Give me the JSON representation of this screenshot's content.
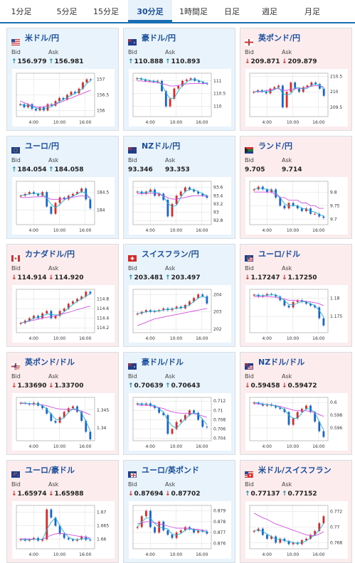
{
  "tabs": [
    {
      "label": "1分足",
      "active": false
    },
    {
      "label": "5分足",
      "active": false
    },
    {
      "label": "15分足",
      "active": false
    },
    {
      "label": "30分足",
      "active": true
    },
    {
      "label": "1時間足",
      "active": false
    },
    {
      "label": "日足",
      "active": false
    },
    {
      "label": "週足",
      "active": false
    },
    {
      "label": "月足",
      "active": false
    }
  ],
  "labels": {
    "bid": "Bid",
    "ask": "Ask"
  },
  "colors": {
    "up_bg": "#e8f3fc",
    "down_bg": "#fcecee",
    "up_candle": "#d42a2a",
    "down_candle": "#1a63c9",
    "ma_short": "#1fb3d6",
    "ma_long": "#d24fe0",
    "name": "#1a4f9c"
  },
  "pairs": [
    {
      "name": "米ドル/円",
      "dir": "up",
      "flag": "us",
      "bid": "156.979",
      "ask": "156.981",
      "bid_dir": "up",
      "ask_dir": "up",
      "chart_data": {
        "type": "candlestick",
        "x_ticks": [
          "4:00",
          "10:00",
          "16:00"
        ],
        "y_ticks": [
          "157",
          "156.5",
          "156"
        ],
        "ylim": [
          155.8,
          157.2
        ],
        "trend": [
          156.2,
          156.1,
          156.2,
          156.05,
          156.0,
          156.1,
          156.0,
          156.2,
          156.15,
          156.3,
          156.4,
          156.35,
          156.5,
          156.6,
          156.55,
          156.7,
          156.9,
          157.0,
          156.98
        ],
        "ma_long": [
          156.3,
          156.25,
          156.2,
          156.15,
          156.12,
          156.1,
          156.12,
          156.15,
          156.18,
          156.2,
          156.25,
          156.3,
          156.35,
          156.4,
          156.45,
          156.5,
          156.55,
          156.6,
          156.65
        ]
      }
    },
    {
      "name": "豪ドル/円",
      "dir": "up",
      "flag": "au",
      "bid": "110.888",
      "ask": "110.893",
      "bid_dir": "up",
      "ask_dir": "up",
      "chart_data": {
        "type": "candlestick",
        "x_ticks": [
          "4:00",
          "10:00",
          "16:00"
        ],
        "y_ticks": [
          "111",
          "110.5",
          "110"
        ],
        "ylim": [
          109.6,
          111.3
        ],
        "trend": [
          111.1,
          111.05,
          111.0,
          111.0,
          110.95,
          111.0,
          110.6,
          110.0,
          110.3,
          110.7,
          110.8,
          111.0,
          111.05,
          111.1,
          111.0,
          110.95,
          110.9,
          110.88
        ],
        "ma_long": [
          111.0,
          111.0,
          110.98,
          110.96,
          110.95,
          110.93,
          110.9,
          110.85,
          110.8,
          110.8,
          110.82,
          110.85,
          110.88,
          110.9,
          110.9,
          110.9,
          110.9,
          110.9
        ]
      }
    },
    {
      "name": "英ポンド/円",
      "dir": "down",
      "flag": "gb",
      "bid": "209.871",
      "ask": "209.879",
      "bid_dir": "down",
      "ask_dir": "down",
      "chart_data": {
        "type": "candlestick",
        "x_ticks": [
          "4:00",
          "10:00",
          "16:00"
        ],
        "y_ticks": [
          "210.5",
          "210",
          "209.5"
        ],
        "ylim": [
          209.2,
          210.6
        ],
        "trend": [
          210.0,
          210.05,
          210.0,
          209.95,
          210.1,
          210.15,
          210.2,
          209.5,
          210.0,
          210.3,
          210.1,
          210.0,
          210.15,
          210.2,
          210.3,
          210.25,
          210.1,
          209.87
        ],
        "ma_long": [
          210.0,
          210.0,
          210.0,
          210.05,
          210.05,
          210.1,
          210.1,
          210.05,
          210.05,
          210.08,
          210.1,
          210.1,
          210.12,
          210.15,
          210.18,
          210.2,
          210.2,
          210.15
        ]
      }
    },
    {
      "name": "ユーロ/円",
      "dir": "up",
      "flag": "eu",
      "bid": "184.054",
      "ask": "184.058",
      "bid_dir": "up",
      "ask_dir": "up",
      "chart_data": {
        "type": "candlestick",
        "x_ticks": [
          "4:00",
          "10:00",
          "16:00"
        ],
        "y_ticks": [
          "184.5",
          "184"
        ],
        "ylim": [
          183.6,
          184.8
        ],
        "trend": [
          184.4,
          184.45,
          184.5,
          184.45,
          184.4,
          184.5,
          184.1,
          183.9,
          184.2,
          184.35,
          184.3,
          184.4,
          184.45,
          184.5,
          184.6,
          184.3,
          184.05
        ],
        "ma_long": [
          184.35,
          184.35,
          184.36,
          184.37,
          184.37,
          184.38,
          184.35,
          184.3,
          184.3,
          184.3,
          184.32,
          184.34,
          184.36,
          184.38,
          184.4,
          184.38,
          184.35
        ]
      }
    },
    {
      "name": "NZドル/円",
      "dir": "up",
      "flag": "nz",
      "bid": "93.346",
      "ask": "93.353",
      "bid_dir": "",
      "ask_dir": "",
      "chart_data": {
        "type": "candlestick",
        "x_ticks": [
          "4:00",
          "10:00",
          "16:00"
        ],
        "y_ticks": [
          "93.6",
          "93.4",
          "93.2",
          "93",
          "92.8"
        ],
        "ylim": [
          92.7,
          93.75
        ],
        "trend": [
          93.5,
          93.45,
          93.5,
          93.55,
          93.4,
          93.45,
          93.3,
          92.9,
          93.2,
          93.4,
          93.5,
          93.6,
          93.55,
          93.5,
          93.45,
          93.4,
          93.35
        ],
        "ma_long": [
          93.45,
          93.45,
          93.45,
          93.46,
          93.45,
          93.44,
          93.4,
          93.35,
          93.32,
          93.32,
          93.34,
          93.36,
          93.38,
          93.4,
          93.4,
          93.4,
          93.38
        ]
      }
    },
    {
      "name": "ランド/円",
      "dir": "down",
      "flag": "za",
      "bid": "9.705",
      "ask": "9.714",
      "bid_dir": "",
      "ask_dir": "",
      "chart_data": {
        "type": "candlestick",
        "x_ticks": [
          "4:00",
          "10:00",
          "16:00"
        ],
        "y_ticks": [
          "9.8",
          "9.75",
          "9.7"
        ],
        "ylim": [
          9.68,
          9.84
        ],
        "trend": [
          9.81,
          9.82,
          9.81,
          9.8,
          9.81,
          9.78,
          9.75,
          9.74,
          9.76,
          9.75,
          9.74,
          9.73,
          9.74,
          9.72,
          9.72,
          9.71,
          9.705
        ],
        "ma_long": [
          9.8,
          9.8,
          9.8,
          9.8,
          9.8,
          9.79,
          9.78,
          9.78,
          9.77,
          9.77,
          9.77,
          9.76,
          9.76,
          9.75,
          9.75,
          9.74,
          9.74
        ]
      }
    },
    {
      "name": "カナダドル/円",
      "dir": "down",
      "flag": "ca",
      "bid": "114.914",
      "ask": "114.920",
      "bid_dir": "down",
      "ask_dir": "down",
      "chart_data": {
        "type": "candlestick",
        "x_ticks": [
          "4:00",
          "10:00",
          "16:00"
        ],
        "y_ticks": [
          "114.8",
          "114.6",
          "114.4",
          "114.2"
        ],
        "ylim": [
          114.1,
          115.0
        ],
        "trend": [
          114.3,
          114.35,
          114.4,
          114.45,
          114.4,
          114.5,
          114.55,
          114.4,
          114.45,
          114.55,
          114.6,
          114.7,
          114.75,
          114.8,
          114.85,
          114.95,
          114.91
        ],
        "ma_long": [
          114.3,
          114.32,
          114.34,
          114.36,
          114.38,
          114.4,
          114.42,
          114.43,
          114.45,
          114.47,
          114.5,
          114.52,
          114.55,
          114.58,
          114.6,
          114.63,
          114.65
        ]
      }
    },
    {
      "name": "スイスフラン/円",
      "dir": "up",
      "flag": "ch",
      "bid": "203.481",
      "ask": "203.497",
      "bid_dir": "up",
      "ask_dir": "up",
      "chart_data": {
        "type": "candlestick",
        "x_ticks": [
          "4:00",
          "10:00",
          "16:00"
        ],
        "y_ticks": [
          "204",
          "203",
          "202"
        ],
        "ylim": [
          201.8,
          204.3
        ],
        "trend": [
          202.9,
          203.0,
          203.1,
          203.0,
          203.05,
          203.1,
          203.2,
          203.1,
          203.2,
          203.3,
          203.2,
          203.4,
          203.6,
          203.8,
          204.0,
          203.9,
          203.48
        ],
        "ma_long": [
          202.2,
          202.3,
          202.4,
          202.5,
          202.6,
          202.65,
          202.7,
          202.75,
          202.8,
          202.85,
          202.9,
          202.95,
          203.0,
          203.05,
          203.1,
          203.15,
          203.2
        ]
      }
    },
    {
      "name": "ユーロ/ドル",
      "dir": "down",
      "flag": "eu2",
      "bid": "1.17247",
      "ask": "1.17250",
      "bid_dir": "down",
      "ask_dir": "down",
      "chart_data": {
        "type": "candlestick",
        "x_ticks": [
          "4:00",
          "10:00",
          "16:00"
        ],
        "y_ticks": [
          "1.18",
          "1.175"
        ],
        "ylim": [
          1.1705,
          1.1825
        ],
        "trend": [
          1.181,
          1.1805,
          1.1808,
          1.1812,
          1.181,
          1.1805,
          1.1795,
          1.178,
          1.1775,
          1.179,
          1.1795,
          1.179,
          1.1785,
          1.178,
          1.1775,
          1.1745,
          1.1725
        ],
        "ma_long": [
          1.1805,
          1.1805,
          1.1805,
          1.1805,
          1.1804,
          1.1803,
          1.18,
          1.1798,
          1.1795,
          1.1795,
          1.1794,
          1.1793,
          1.1792,
          1.179,
          1.1788,
          1.1785,
          1.178
        ]
      }
    },
    {
      "name": "英ポンド/ドル",
      "dir": "down",
      "flag": "gbus",
      "bid": "1.33690",
      "ask": "1.33700",
      "bid_dir": "down",
      "ask_dir": "down",
      "chart_data": {
        "type": "candlestick",
        "x_ticks": [
          "4:00",
          "10:00",
          "16:00"
        ],
        "y_ticks": [
          "1.345",
          "1.34"
        ],
        "ylim": [
          1.3365,
          1.3485
        ],
        "trend": [
          1.347,
          1.3468,
          1.3465,
          1.347,
          1.3462,
          1.3455,
          1.344,
          1.342,
          1.3415,
          1.343,
          1.3445,
          1.3455,
          1.346,
          1.3445,
          1.342,
          1.339,
          1.3369
        ],
        "ma_long": [
          1.3468,
          1.3468,
          1.3467,
          1.3467,
          1.3466,
          1.3464,
          1.3462,
          1.3458,
          1.3455,
          1.3453,
          1.3452,
          1.3452,
          1.3452,
          1.345,
          1.3447,
          1.3442,
          1.3437
        ]
      }
    },
    {
      "name": "豪ドル/ドル",
      "dir": "up",
      "flag": "au",
      "bid": "0.70639",
      "ask": "0.70643",
      "bid_dir": "up",
      "ask_dir": "up",
      "chart_data": {
        "type": "candlestick",
        "x_ticks": [
          "4:00",
          "10:00",
          "16:00"
        ],
        "y_ticks": [
          "0.712",
          "0.71",
          "0.708",
          "0.706",
          "0.704"
        ],
        "ylim": [
          0.7035,
          0.7128
        ],
        "trend": [
          0.7115,
          0.7112,
          0.7115,
          0.711,
          0.7105,
          0.7095,
          0.709,
          0.705,
          0.706,
          0.7075,
          0.708,
          0.709,
          0.71,
          0.7095,
          0.708,
          0.7065,
          0.7064
        ],
        "ma_long": [
          0.7112,
          0.7111,
          0.7111,
          0.711,
          0.7108,
          0.7106,
          0.7104,
          0.71,
          0.7097,
          0.7095,
          0.7094,
          0.7094,
          0.7094,
          0.7093,
          0.7091,
          0.7088,
          0.7085
        ]
      }
    },
    {
      "name": "NZドル/ドル",
      "dir": "down",
      "flag": "nzus",
      "bid": "0.59458",
      "ask": "0.59472",
      "bid_dir": "down",
      "ask_dir": "down",
      "chart_data": {
        "type": "candlestick",
        "x_ticks": [
          "4:00",
          "10:00",
          "16:00"
        ],
        "y_ticks": [
          "0.6",
          "0.598",
          "0.596"
        ],
        "ylim": [
          0.594,
          0.6008
        ],
        "trend": [
          0.6,
          0.5998,
          0.5995,
          0.5997,
          0.5995,
          0.5992,
          0.599,
          0.5985,
          0.5965,
          0.5975,
          0.5985,
          0.599,
          0.5995,
          0.5985,
          0.597,
          0.5955,
          0.5946
        ],
        "ma_long": [
          0.5998,
          0.5998,
          0.5997,
          0.5997,
          0.5996,
          0.5995,
          0.5994,
          0.5992,
          0.599,
          0.5988,
          0.5987,
          0.5987,
          0.5987,
          0.5986,
          0.5984,
          0.5981,
          0.5978
        ]
      }
    },
    {
      "name": "ユーロ/豪ドル",
      "dir": "down",
      "flag": "euau",
      "bid": "1.65974",
      "ask": "1.65988",
      "bid_dir": "down",
      "ask_dir": "down",
      "chart_data": {
        "type": "candlestick",
        "x_ticks": [
          "4:00",
          "10:00",
          "16:00"
        ],
        "y_ticks": [
          "1.67",
          "1.665",
          "1.66"
        ],
        "ylim": [
          1.6565,
          1.6725
        ],
        "trend": [
          1.66,
          1.6595,
          1.66,
          1.6605,
          1.6595,
          1.66,
          1.671,
          1.668,
          1.665,
          1.662,
          1.6605,
          1.66,
          1.6595,
          1.66,
          1.661,
          1.6598,
          1.6597
        ],
        "ma_long": [
          1.6602,
          1.6602,
          1.6601,
          1.6601,
          1.66,
          1.66,
          1.6608,
          1.6615,
          1.662,
          1.6622,
          1.662,
          1.6618,
          1.6615,
          1.6612,
          1.661,
          1.6608,
          1.6605
        ]
      }
    },
    {
      "name": "ユーロ/英ポンド",
      "dir": "up",
      "flag": "eugb",
      "bid": "0.87694",
      "ask": "0.87702",
      "bid_dir": "down",
      "ask_dir": "down",
      "chart_data": {
        "type": "candlestick",
        "x_ticks": [
          "4:00",
          "10:00",
          "16:00"
        ],
        "y_ticks": [
          "0.879",
          "0.878",
          "0.877",
          "0.876"
        ],
        "ylim": [
          0.8755,
          0.8795
        ],
        "trend": [
          0.8775,
          0.8785,
          0.879,
          0.8775,
          0.877,
          0.878,
          0.8772,
          0.8768,
          0.8765,
          0.877,
          0.8772,
          0.8775,
          0.8773,
          0.877,
          0.8772,
          0.8771,
          0.8769
        ],
        "ma_long": [
          0.8778,
          0.8779,
          0.878,
          0.878,
          0.8779,
          0.8778,
          0.8777,
          0.8776,
          0.8775,
          0.8774,
          0.8774,
          0.8774,
          0.8774,
          0.8773,
          0.8773,
          0.8772,
          0.8772
        ]
      }
    },
    {
      "name": "米ドル/スイスフラン",
      "dir": "down",
      "flag": "usch",
      "bid": "0.77137",
      "ask": "0.77152",
      "bid_dir": "up",
      "ask_dir": "up",
      "chart_data": {
        "type": "candlestick",
        "x_ticks": [
          "4:00",
          "10:00",
          "16:00"
        ],
        "y_ticks": [
          "0.772",
          "0.77",
          "0.768"
        ],
        "ylim": [
          0.7672,
          0.7728
        ],
        "trend": [
          0.7695,
          0.7698,
          0.769,
          0.7685,
          0.7688,
          0.768,
          0.7685,
          0.7682,
          0.7678,
          0.768,
          0.7678,
          0.7683,
          0.7685,
          0.769,
          0.7695,
          0.7705,
          0.7714
        ],
        "ma_long": [
          0.7718,
          0.7715,
          0.7712,
          0.771,
          0.7707,
          0.7704,
          0.7702,
          0.77,
          0.7698,
          0.7696,
          0.7694,
          0.7692,
          0.769,
          0.7689,
          0.7689,
          0.7691,
          0.7694
        ]
      }
    }
  ]
}
